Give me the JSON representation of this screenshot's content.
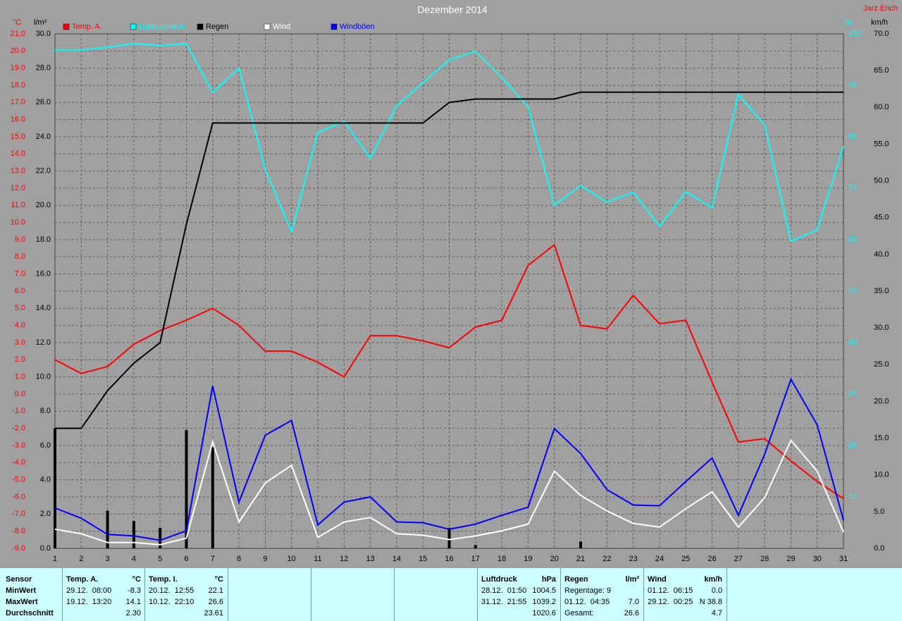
{
  "chart_data": {
    "type": "line",
    "title": "Dezember 2014",
    "credit": "Jarz Erich",
    "units": {
      "y": "°C",
      "y2": "l/m²",
      "y3": "%",
      "y4": "km/h"
    },
    "axis_colors": {
      "y": "#ff0000",
      "y2": "#000000",
      "y3": "#00ffff",
      "y4": "#000000"
    },
    "grid": true,
    "x": [
      1,
      2,
      3,
      4,
      5,
      6,
      7,
      8,
      9,
      10,
      11,
      12,
      13,
      14,
      15,
      16,
      17,
      18,
      19,
      20,
      21,
      22,
      23,
      24,
      25,
      26,
      27,
      28,
      29,
      30,
      31
    ],
    "xlim": [
      1,
      31
    ],
    "xticks": [
      1,
      2,
      3,
      4,
      5,
      6,
      7,
      8,
      9,
      10,
      11,
      12,
      13,
      14,
      15,
      16,
      17,
      18,
      19,
      20,
      21,
      22,
      23,
      24,
      25,
      26,
      27,
      28,
      29,
      30,
      31
    ],
    "ylim": [
      -9,
      21
    ],
    "yticks": [
      {
        "value": 21,
        "label": "21.0"
      },
      {
        "value": 20,
        "label": "20.0"
      },
      {
        "value": 19,
        "label": "19.0"
      },
      {
        "value": 18,
        "label": "18.0"
      },
      {
        "value": 17,
        "label": "17.0"
      },
      {
        "value": 16,
        "label": "16.0"
      },
      {
        "value": 15,
        "label": "15.0"
      },
      {
        "value": 14,
        "label": "14.0"
      },
      {
        "value": 13,
        "label": "13.0"
      },
      {
        "value": 12,
        "label": "12.0"
      },
      {
        "value": 11,
        "label": "11.0"
      },
      {
        "value": 10,
        "label": "10.0"
      },
      {
        "value": 9,
        "label": "9.0"
      },
      {
        "value": 8,
        "label": "8.0"
      },
      {
        "value": 7,
        "label": "7.0"
      },
      {
        "value": 6,
        "label": "6.0"
      },
      {
        "value": 5,
        "label": "5.0"
      },
      {
        "value": 4,
        "label": "4.0"
      },
      {
        "value": 3,
        "label": "3.0"
      },
      {
        "value": 2,
        "label": "2.0"
      },
      {
        "value": 1,
        "label": "1.0"
      },
      {
        "value": 0,
        "label": "0.0"
      },
      {
        "value": -1,
        "label": "-1.0"
      },
      {
        "value": -2,
        "label": "-2.0"
      },
      {
        "value": -3,
        "label": "-3.0"
      },
      {
        "value": -4,
        "label": "-4.0"
      },
      {
        "value": -5,
        "label": "-5.0"
      },
      {
        "value": -6,
        "label": "-6.0"
      },
      {
        "value": -7,
        "label": "-7.0"
      },
      {
        "value": -8,
        "label": "-8.0"
      },
      {
        "value": -9,
        "label": "-9.0"
      }
    ],
    "y2lim": [
      0,
      30
    ],
    "y2ticks": [
      {
        "value": 30,
        "label": "30.0"
      },
      {
        "value": 28,
        "label": "28.0"
      },
      {
        "value": 26,
        "label": "26.0"
      },
      {
        "value": 24,
        "label": "24.0"
      },
      {
        "value": 22,
        "label": "22.0"
      },
      {
        "value": 20,
        "label": "20.0"
      },
      {
        "value": 18,
        "label": "18.0"
      },
      {
        "value": 16,
        "label": "16.0"
      },
      {
        "value": 14,
        "label": "14.0"
      },
      {
        "value": 12,
        "label": "12.0"
      },
      {
        "value": 10,
        "label": "10.0"
      },
      {
        "value": 8,
        "label": "8.0"
      },
      {
        "value": 6,
        "label": "6.0"
      },
      {
        "value": 4,
        "label": "4.0"
      },
      {
        "value": 2,
        "label": "2.0"
      },
      {
        "value": 0,
        "label": "0.0"
      }
    ],
    "y3lim": [
      0,
      100
    ],
    "y3ticks": [
      100,
      90,
      80,
      70,
      60,
      50,
      40,
      30,
      20,
      10
    ],
    "y4lim": [
      0,
      70
    ],
    "y4ticks": [
      {
        "value": 70,
        "label": "70.0"
      },
      {
        "value": 65,
        "label": "65.0"
      },
      {
        "value": 60,
        "label": "60.0"
      },
      {
        "value": 55,
        "label": "55.0"
      },
      {
        "value": 50,
        "label": "50.0"
      },
      {
        "value": 45,
        "label": "45.0"
      },
      {
        "value": 40,
        "label": "40.0"
      },
      {
        "value": 35,
        "label": "35.0"
      },
      {
        "value": 30,
        "label": "30.0"
      },
      {
        "value": 25,
        "label": "25.0"
      },
      {
        "value": 20,
        "label": "20.0"
      },
      {
        "value": 15,
        "label": "15.0"
      },
      {
        "value": 10,
        "label": "10.0"
      },
      {
        "value": 5,
        "label": "5.0"
      },
      {
        "value": 0,
        "label": "0.0"
      }
    ],
    "bars": {
      "axis": "y2",
      "color": "#000000",
      "values": [
        7.0,
        0,
        2.2,
        1.6,
        1.2,
        6.9,
        5.9,
        0,
        0,
        0,
        0,
        0,
        0,
        0,
        0,
        1.2,
        0.2,
        0,
        0,
        0,
        0.4,
        0,
        0,
        0,
        0,
        0,
        0,
        0,
        0,
        0,
        0
      ]
    },
    "series": [
      {
        "name": "Temp. A.",
        "color": "#ff0000",
        "axis": "y",
        "values": [
          2.0,
          1.2,
          1.6,
          2.9,
          3.7,
          4.3,
          5.0,
          4.0,
          2.5,
          2.5,
          1.85,
          1.0,
          3.4,
          3.4,
          3.1,
          2.7,
          3.9,
          4.3,
          7.5,
          8.7,
          4.0,
          3.8,
          5.75,
          4.1,
          4.3,
          0.7,
          -2.8,
          -2.6,
          -3.9,
          -5.1,
          -6.1
        ]
      },
      {
        "name": "Luftfeuchte A.",
        "color": "#00ffff",
        "axis": "y3",
        "values": [
          96.8,
          96.8,
          97.4,
          98.1,
          97.7,
          98.1,
          88.6,
          93.3,
          73.6,
          61.6,
          80.8,
          83.0,
          75.8,
          86.0,
          90.5,
          94.9,
          96.6,
          91.5,
          85.8,
          66.7,
          70.5,
          67.3,
          69.2,
          62.6,
          69.3,
          66.2,
          88.2,
          82.3,
          59.7,
          61.9,
          78.2
        ]
      },
      {
        "name": "Regen",
        "color": "#000000",
        "axis": "y2",
        "values": [
          7.0,
          7.0,
          9.2,
          10.8,
          12.0,
          18.9,
          24.8,
          24.8,
          24.8,
          24.8,
          24.8,
          24.8,
          24.8,
          24.8,
          24.8,
          26.0,
          26.2,
          26.2,
          26.2,
          26.2,
          26.6,
          26.6,
          26.6,
          26.6,
          26.6,
          26.6,
          26.6,
          26.6,
          26.6,
          26.6,
          26.6
        ]
      },
      {
        "name": "Wind",
        "color": "#ffffff",
        "axis": "y4",
        "values": [
          2.6,
          2.0,
          0.8,
          0.8,
          0.5,
          1.4,
          14.5,
          3.6,
          8.9,
          11.3,
          1.5,
          3.6,
          4.2,
          2.0,
          1.8,
          1.2,
          1.7,
          2.4,
          3.3,
          10.5,
          7.2,
          5.1,
          3.4,
          2.9,
          5.4,
          7.7,
          2.9,
          6.9,
          14.7,
          10.5,
          2.2
        ]
      },
      {
        "name": "Windböen",
        "color": "#0000ff",
        "axis": "y4",
        "values": [
          5.5,
          4.1,
          1.9,
          1.7,
          1.1,
          2.4,
          22.1,
          6.3,
          15.4,
          17.4,
          3.2,
          6.3,
          7.0,
          3.6,
          3.5,
          2.6,
          3.3,
          4.5,
          5.6,
          16.3,
          12.9,
          8.0,
          5.9,
          5.8,
          9.1,
          12.3,
          4.5,
          12.8,
          23.0,
          16.8,
          3.8
        ]
      }
    ]
  },
  "summary": {
    "labels": [
      "Sensor",
      "MinWert",
      "MaxWert",
      "Durchschnitt"
    ],
    "groups": [
      {
        "title": "Temp. A.",
        "unit": "°C",
        "min_time": "29.12.  08:00",
        "min": "-8.3",
        "max_time": "19.12.  13:20",
        "max": "14.1",
        "avg": "2.30"
      },
      {
        "title": "Temp. I.",
        "unit": "°C",
        "min_time": "20.12.  12:55",
        "min": "22.1",
        "max_time": "10.12.  22:10",
        "max": "26.6",
        "avg": "23.61"
      },
      {
        "title": "Luftdruck",
        "unit": "hPa",
        "min_time": "28.12.  01:50",
        "min": "1004.5",
        "max_time": "31.12.  21:55",
        "max": "1039.2",
        "avg": "1020.6"
      },
      {
        "title": "Regen",
        "unit": "l/m²",
        "min_time": "Regentage: 9",
        "max_time": "01.12.  04:35",
        "max": "7.0",
        "avg_time": "Gesamt:",
        "avg": "26.6"
      },
      {
        "title": "Wind",
        "unit": "km/h",
        "min_time": "01.12.  06:15",
        "min": "0.0",
        "max_time": "29.12.  00:25",
        "max": "N 38.8",
        "avg": "4.7"
      }
    ]
  }
}
